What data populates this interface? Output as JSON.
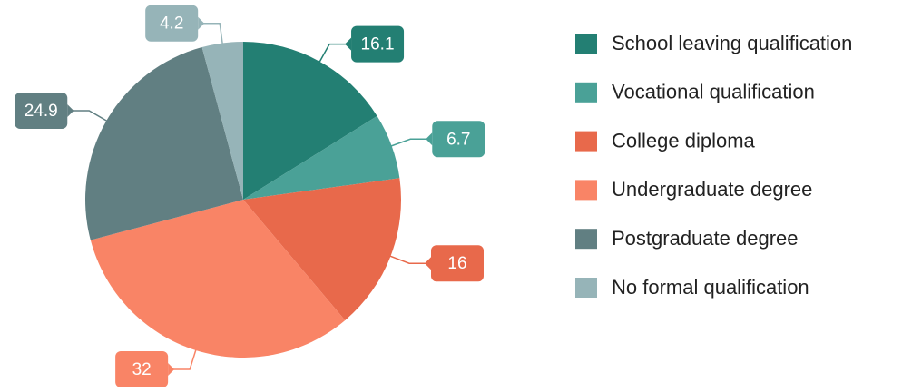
{
  "chart_data": {
    "type": "pie",
    "categories": [
      "School leaving qualification",
      "Vocational qualification",
      "College diploma",
      "Undergraduate degree",
      "Postgraduate degree",
      "No formal qualification"
    ],
    "values": [
      16.1,
      6.7,
      16,
      32,
      24.9,
      4.2
    ],
    "colors": [
      "#237f73",
      "#4aa197",
      "#e8694b",
      "#f98466",
      "#617f82",
      "#96b4b8"
    ],
    "legend": "right"
  }
}
